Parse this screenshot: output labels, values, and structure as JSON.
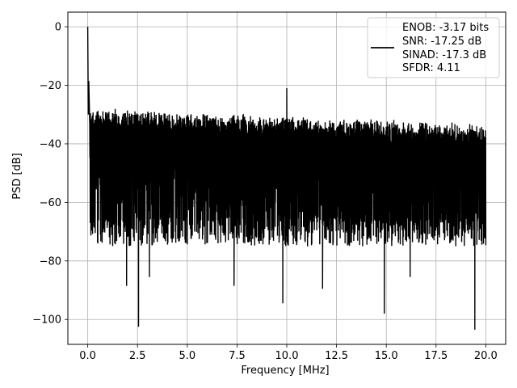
{
  "chart_data": {
    "type": "line",
    "xlabel": "Frequency [MHz]",
    "ylabel": "PSD [dB]",
    "xlim": [
      -1.0,
      21.0
    ],
    "ylim": [
      -108.5,
      5
    ],
    "xticks": [
      0.0,
      2.5,
      5.0,
      7.5,
      10.0,
      12.5,
      15.0,
      17.5,
      20.0
    ],
    "xtick_labels": [
      "0.0",
      "2.5",
      "5.0",
      "7.5",
      "10.0",
      "12.5",
      "15.0",
      "17.5",
      "20.0"
    ],
    "yticks": [
      0,
      -20,
      -40,
      -60,
      -80,
      -100
    ],
    "ytick_labels": [
      "0",
      "−20",
      "−40",
      "−60",
      "−80",
      "−100"
    ],
    "grid": true,
    "legend_position": "top-right",
    "line_color": "#000000",
    "series": [
      {
        "legend_lines": [
          "ENOB: -3.17 bits",
          "SNR: -17.25 dB",
          "SINAD: -17.3 dB",
          "SFDR: 4.11"
        ],
        "description_points": {
          "dc_peak": {
            "x": 0.0,
            "y": 0.0
          },
          "low_freq_spur": {
            "x": 0.05,
            "y": -18.5
          },
          "tone_spur": {
            "x": 10.0,
            "y": -21.0
          },
          "upper_envelope_start": {
            "x": 0.2,
            "y": -27.5
          },
          "upper_envelope_end": {
            "x": 20.0,
            "y": -33.0
          },
          "lower_envelope_typical": -72,
          "deep_dips": [
            {
              "x": 1.95,
              "y": -88.5
            },
            {
              "x": 2.55,
              "y": -102.5
            },
            {
              "x": 3.1,
              "y": -85.5
            },
            {
              "x": 7.35,
              "y": -88.5
            },
            {
              "x": 9.8,
              "y": -94.5
            },
            {
              "x": 11.8,
              "y": -89.5
            },
            {
              "x": 14.9,
              "y": -98.0
            },
            {
              "x": 16.2,
              "y": -85.5
            },
            {
              "x": 19.45,
              "y": -103.5
            }
          ]
        }
      }
    ]
  }
}
